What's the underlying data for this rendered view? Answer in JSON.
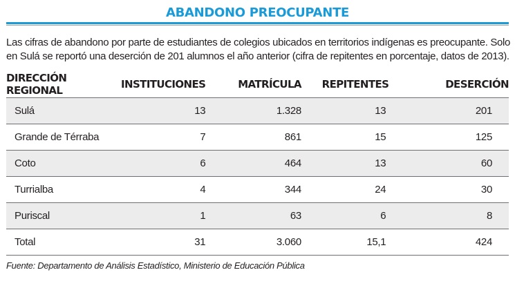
{
  "title": "ABANDONO PREOCUPANTE",
  "intro": "Las cifras de abandono por parte de estudiantes de colegios ubicados en territorios indígenas es preocupante. Solo en Sulá se reportó una deserción de 201 alumnos el año anterior (cifra de repitentes en porcentaje, datos de 2013).",
  "table": {
    "headers": [
      "DIRECCIÓN REGIONAL",
      "INSTITUCIONES",
      "MATRÍCULA",
      "REPITENTES",
      "DESERCIÓN"
    ],
    "rows": [
      [
        "Sulá",
        "13",
        "1.328",
        "13",
        "201"
      ],
      [
        "Grande de Térraba",
        "7",
        "861",
        "15",
        "125"
      ],
      [
        "Coto",
        "6",
        "464",
        "13",
        "60"
      ],
      [
        "Turrialba",
        "4",
        "344",
        "24",
        "30"
      ],
      [
        "Puriscal",
        "1",
        "63",
        "6",
        "8"
      ],
      [
        "Total",
        "31",
        "3.060",
        "15,1",
        "424"
      ]
    ]
  },
  "source": "Fuente: Departamento de Análisis Estadístico, Ministerio de Educación Pública",
  "colors": {
    "accent": "#1a9ad7",
    "row_shade": "#ececec",
    "text": "#231f20"
  }
}
